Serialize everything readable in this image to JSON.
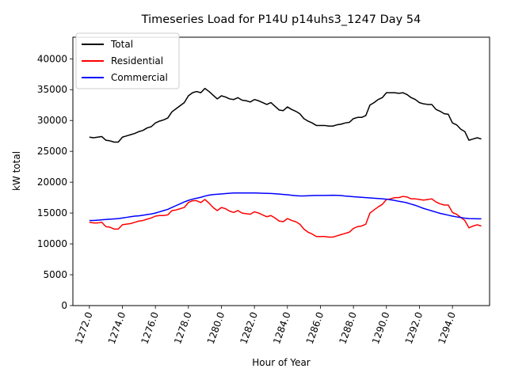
{
  "chart_data": {
    "type": "line",
    "title": "Timeseries Load for P14U p14uhs3_1247  Day 54",
    "xlabel": "Hour of Year",
    "ylabel": "kW total",
    "xlim": [
      1271.0,
      1296.25
    ],
    "ylim": [
      0,
      43500
    ],
    "xticks": [
      1272,
      1274,
      1276,
      1278,
      1280,
      1282,
      1284,
      1286,
      1288,
      1290,
      1292,
      1294
    ],
    "xtick_labels": [
      "1272.0",
      "1274.0",
      "1276.0",
      "1278.0",
      "1280.0",
      "1282.0",
      "1284.0",
      "1286.0",
      "1288.0",
      "1290.0",
      "1292.0",
      "1294.0"
    ],
    "yticks": [
      0,
      5000,
      10000,
      15000,
      20000,
      25000,
      30000,
      35000,
      40000
    ],
    "ytick_labels": [
      "0",
      "5000",
      "10000",
      "15000",
      "20000",
      "25000",
      "30000",
      "35000",
      "40000"
    ],
    "grid": false,
    "legend_position": "top-left",
    "x_start": 1272.0,
    "x_step": 0.25,
    "series": [
      {
        "name": "Total",
        "color": "#000000",
        "values": [
          27300,
          27200,
          27300,
          27400,
          26800,
          26700,
          26500,
          26500,
          27300,
          27500,
          27700,
          27900,
          28200,
          28400,
          28800,
          29000,
          29600,
          29900,
          30100,
          30400,
          31400,
          31900,
          32400,
          32900,
          34000,
          34500,
          34700,
          34500,
          35200,
          34700,
          34100,
          33500,
          34000,
          33800,
          33500,
          33400,
          33700,
          33300,
          33200,
          33000,
          33400,
          33200,
          32900,
          32600,
          32900,
          32300,
          31700,
          31600,
          32200,
          31800,
          31500,
          31100,
          30300,
          29900,
          29600,
          29200,
          29200,
          29200,
          29100,
          29100,
          29300,
          29400,
          29600,
          29700,
          30300,
          30500,
          30500,
          30800,
          32500,
          32900,
          33400,
          33700,
          34500,
          34500,
          34500,
          34400,
          34500,
          34200,
          33700,
          33400,
          32900,
          32700,
          32600,
          32600,
          31800,
          31500,
          31100,
          31000,
          29600,
          29300,
          28600,
          28200,
          26800,
          27000,
          27200,
          27000
        ]
      },
      {
        "name": "Residential",
        "color": "#ff0000",
        "values": [
          13500,
          13400,
          13400,
          13500,
          12800,
          12700,
          12400,
          12400,
          13100,
          13200,
          13300,
          13500,
          13700,
          13800,
          14000,
          14200,
          14500,
          14600,
          14600,
          14700,
          15400,
          15500,
          15700,
          15900,
          16700,
          17000,
          17000,
          16700,
          17200,
          16600,
          15900,
          15400,
          15900,
          15700,
          15300,
          15100,
          15400,
          15000,
          14900,
          14800,
          15200,
          15000,
          14700,
          14400,
          14600,
          14200,
          13700,
          13600,
          14100,
          13800,
          13600,
          13200,
          12400,
          11900,
          11600,
          11200,
          11200,
          11200,
          11100,
          11100,
          11300,
          11500,
          11700,
          11900,
          12500,
          12800,
          12900,
          13200,
          15000,
          15500,
          16000,
          16400,
          17200,
          17300,
          17500,
          17500,
          17700,
          17600,
          17300,
          17300,
          17200,
          17100,
          17200,
          17300,
          16800,
          16500,
          16300,
          16300,
          15100,
          14800,
          14300,
          13800,
          12600,
          12900,
          13100,
          12900
        ]
      },
      {
        "name": "Commercial",
        "color": "#0000ff",
        "values": [
          13800,
          13800,
          13850,
          13900,
          13950,
          14000,
          14050,
          14100,
          14200,
          14300,
          14400,
          14500,
          14550,
          14650,
          14750,
          14850,
          15000,
          15200,
          15400,
          15600,
          15900,
          16200,
          16500,
          16800,
          17050,
          17250,
          17400,
          17550,
          17750,
          17900,
          18000,
          18050,
          18100,
          18150,
          18200,
          18250,
          18250,
          18250,
          18250,
          18250,
          18250,
          18230,
          18210,
          18190,
          18170,
          18120,
          18070,
          18020,
          17960,
          17880,
          17820,
          17780,
          17780,
          17800,
          17830,
          17850,
          17850,
          17850,
          17870,
          17890,
          17870,
          17830,
          17750,
          17700,
          17650,
          17600,
          17550,
          17500,
          17450,
          17400,
          17350,
          17300,
          17250,
          17150,
          17050,
          16900,
          16800,
          16650,
          16450,
          16250,
          16000,
          15750,
          15550,
          15350,
          15150,
          14950,
          14800,
          14650,
          14500,
          14380,
          14270,
          14170,
          14100,
          14080,
          14070,
          14060
        ]
      }
    ]
  }
}
